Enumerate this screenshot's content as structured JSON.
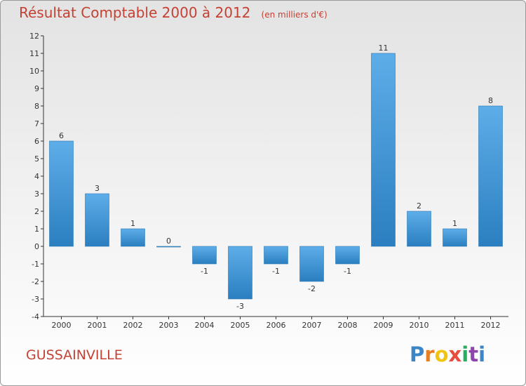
{
  "header": {
    "title": "Résultat Comptable 2000 à 2012",
    "subtitle": "(en milliers d'€)"
  },
  "footer": {
    "town": "GUSSAINVILLE",
    "logo_icon": "proxiti-logo",
    "logo_text": "Proxiti"
  },
  "colors": {
    "bar_light": "#5dade8",
    "bar_dark": "#2b7fc0",
    "title": "#c44133"
  },
  "chart_data": {
    "type": "bar",
    "categories": [
      "2000",
      "2001",
      "2002",
      "2003",
      "2004",
      "2005",
      "2006",
      "2007",
      "2008",
      "2009",
      "2010",
      "2011",
      "2012"
    ],
    "values": [
      6,
      3,
      1,
      0,
      -1,
      -3,
      -1,
      -2,
      -1,
      11,
      2,
      1,
      8
    ],
    "ylim": [
      -4,
      12
    ],
    "yticks": [
      -4,
      -3,
      -2,
      -1,
      0,
      1,
      2,
      3,
      4,
      5,
      6,
      7,
      8,
      9,
      10,
      11,
      12
    ],
    "title": "Résultat Comptable 2000 à 2012",
    "xlabel": "",
    "ylabel": "",
    "grid": false,
    "legend": "none"
  }
}
